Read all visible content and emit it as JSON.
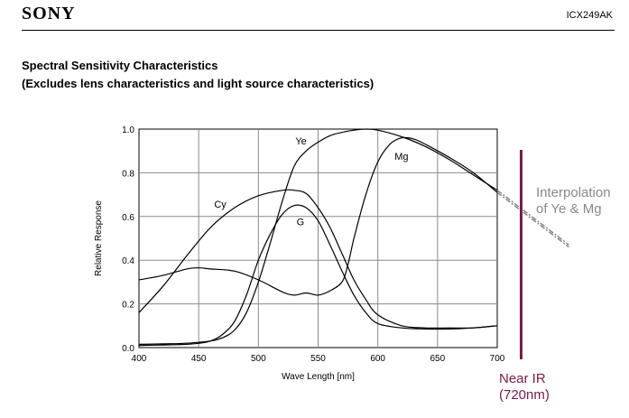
{
  "header": {
    "brand": "SONY",
    "part_number": "ICX249AK"
  },
  "section": {
    "title": "Spectral Sensitivity Characteristics",
    "subtitle": "(Excludes lens characteristics and light source characteristics)"
  },
  "annotations": {
    "interpolation_line1": "Interpolation",
    "interpolation_line2": "of Ye & Mg",
    "near_ir_line1": "Near IR",
    "near_ir_line2": "(720nm)",
    "marker_x": 720,
    "marker_color": "#7b1a4a",
    "interp_color": "#888888"
  },
  "chart_data": {
    "type": "line",
    "title": "",
    "xlabel": "Wave Length [nm]",
    "ylabel": "Relative Response",
    "xlim": [
      400,
      700
    ],
    "ylim": [
      0.0,
      1.0
    ],
    "x_ticks": [
      "400",
      "450",
      "500",
      "550",
      "600",
      "650",
      "700"
    ],
    "y_ticks": [
      "0.0",
      "0.2",
      "0.4",
      "0.6",
      "0.8",
      "1.0"
    ],
    "grid": true,
    "series": [
      {
        "name": "Ye",
        "label_at": [
          531,
          0.93
        ],
        "x": [
          400,
          420,
          440,
          460,
          470,
          480,
          490,
          500,
          510,
          520,
          530,
          540,
          550,
          560,
          570,
          580,
          590,
          600,
          620,
          640,
          660,
          680,
          700
        ],
        "y": [
          0.015,
          0.017,
          0.02,
          0.03,
          0.045,
          0.08,
          0.16,
          0.3,
          0.48,
          0.67,
          0.83,
          0.9,
          0.94,
          0.97,
          0.985,
          0.995,
          1.0,
          0.995,
          0.965,
          0.92,
          0.86,
          0.79,
          0.72
        ]
      },
      {
        "name": "Mg",
        "label_at": [
          614,
          0.86
        ],
        "x": [
          400,
          420,
          440,
          450,
          460,
          480,
          500,
          520,
          530,
          540,
          550,
          560,
          570,
          575,
          580,
          590,
          600,
          610,
          620,
          630,
          640,
          660,
          680,
          700
        ],
        "y": [
          0.31,
          0.33,
          0.36,
          0.365,
          0.36,
          0.35,
          0.31,
          0.255,
          0.24,
          0.25,
          0.24,
          0.26,
          0.3,
          0.38,
          0.5,
          0.7,
          0.85,
          0.93,
          0.96,
          0.955,
          0.93,
          0.87,
          0.8,
          0.71
        ]
      },
      {
        "name": "Cy",
        "label_at": [
          463,
          0.64
        ],
        "x": [
          400,
          420,
          440,
          460,
          480,
          500,
          520,
          530,
          540,
          550,
          560,
          570,
          580,
          590,
          600,
          620,
          640,
          660,
          680,
          700
        ],
        "y": [
          0.16,
          0.28,
          0.42,
          0.55,
          0.64,
          0.695,
          0.72,
          0.72,
          0.705,
          0.64,
          0.55,
          0.43,
          0.31,
          0.22,
          0.15,
          0.1,
          0.09,
          0.09,
          0.09,
          0.1
        ]
      },
      {
        "name": "G",
        "label_at": [
          532,
          0.56
        ],
        "x": [
          400,
          420,
          440,
          450,
          460,
          470,
          480,
          490,
          500,
          510,
          520,
          530,
          540,
          550,
          560,
          570,
          580,
          590,
          600,
          620,
          640,
          660,
          680,
          700
        ],
        "y": [
          0.01,
          0.012,
          0.015,
          0.02,
          0.03,
          0.06,
          0.12,
          0.24,
          0.4,
          0.52,
          0.61,
          0.65,
          0.64,
          0.58,
          0.47,
          0.35,
          0.24,
          0.16,
          0.11,
          0.09,
          0.085,
          0.085,
          0.09,
          0.1
        ]
      }
    ],
    "interpolation": {
      "label": "Interpolation of Ye & Mg",
      "lines": [
        {
          "x": [
            700,
            760
          ],
          "y": [
            0.72,
            0.47
          ]
        },
        {
          "x": [
            700,
            760
          ],
          "y": [
            0.71,
            0.46
          ]
        }
      ]
    }
  }
}
